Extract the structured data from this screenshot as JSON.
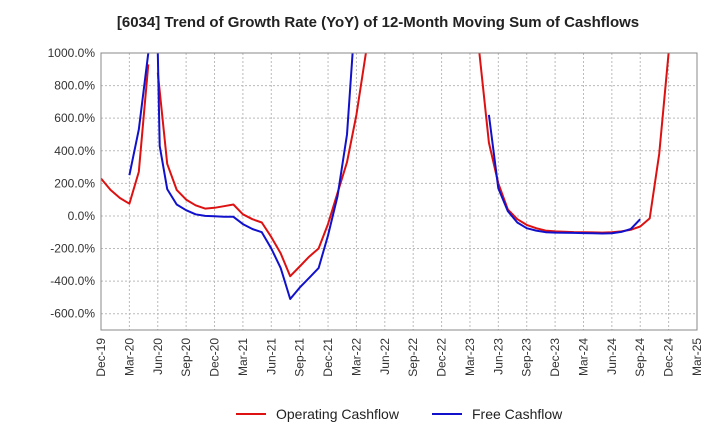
{
  "chart_data": {
    "type": "line",
    "title": "[6034]  Trend of Growth Rate (YoY) of 12-Month Moving Sum of Cashflows",
    "xlabel": "",
    "ylabel": "",
    "ylim": [
      -700,
      1000
    ],
    "y_ticks": [
      -600,
      -400,
      -200,
      0,
      200,
      400,
      600,
      800,
      1000
    ],
    "y_tick_labels": [
      "-600.0%",
      "-400.0%",
      "-200.0%",
      "0.0%",
      "200.0%",
      "400.0%",
      "600.0%",
      "800.0%",
      "1000.0%"
    ],
    "x_tick_labels": [
      "Dec-19",
      "Mar-20",
      "Jun-20",
      "Sep-20",
      "Dec-20",
      "Mar-21",
      "Jun-21",
      "Sep-21",
      "Dec-21",
      "Mar-22",
      "Jun-22",
      "Sep-22",
      "Dec-22",
      "Mar-23",
      "Jun-23",
      "Sep-23",
      "Dec-23",
      "Mar-24",
      "Jun-24",
      "Sep-24",
      "Dec-24",
      "Mar-25"
    ],
    "grid": true,
    "legend_position": "bottom",
    "series": [
      {
        "name": "Operating Cashflow",
        "color": "#dd1111",
        "points": [
          [
            0,
            230
          ],
          [
            1,
            160
          ],
          [
            2,
            110
          ],
          [
            3,
            75
          ],
          [
            4,
            270
          ],
          [
            5,
            930
          ],
          [
            null,
            null
          ],
          [
            6,
            880
          ],
          [
            7,
            320
          ],
          [
            8,
            160
          ],
          [
            9,
            100
          ],
          [
            10,
            65
          ],
          [
            11,
            45
          ],
          [
            12,
            50
          ],
          [
            13,
            60
          ],
          [
            14,
            70
          ],
          [
            15,
            10
          ],
          [
            16,
            -20
          ],
          [
            17,
            -40
          ],
          [
            18,
            -130
          ],
          [
            19,
            -230
          ],
          [
            20,
            -370
          ],
          [
            21,
            -310
          ],
          [
            22,
            -250
          ],
          [
            23,
            -200
          ],
          [
            24,
            -50
          ],
          [
            25,
            140
          ],
          [
            26,
            330
          ],
          [
            27,
            620
          ],
          [
            28,
            1000
          ],
          [
            null,
            null
          ],
          [
            40,
            1000
          ],
          [
            41,
            450
          ],
          [
            42,
            200
          ],
          [
            43,
            40
          ],
          [
            44,
            -20
          ],
          [
            45,
            -55
          ],
          [
            46,
            -75
          ],
          [
            47,
            -90
          ],
          [
            48,
            -95
          ],
          [
            49,
            -97
          ],
          [
            50,
            -99
          ],
          [
            51,
            -100
          ],
          [
            52,
            -101
          ],
          [
            53,
            -102
          ],
          [
            54,
            -100
          ],
          [
            55,
            -95
          ],
          [
            56,
            -85
          ],
          [
            57,
            -65
          ],
          [
            58,
            -15
          ],
          [
            59,
            380
          ],
          [
            60,
            1000
          ]
        ]
      },
      {
        "name": "Free Cashflow",
        "color": "#1111cc",
        "points": [
          [
            3,
            250
          ],
          [
            4,
            530
          ],
          [
            5,
            1000
          ],
          [
            null,
            null
          ],
          [
            6,
            1000
          ],
          [
            6.2,
            430
          ],
          [
            7,
            165
          ],
          [
            8,
            70
          ],
          [
            9,
            35
          ],
          [
            10,
            10
          ],
          [
            11,
            0
          ],
          [
            12,
            -2
          ],
          [
            13,
            -5
          ],
          [
            14,
            -5
          ],
          [
            15,
            -50
          ],
          [
            16,
            -80
          ],
          [
            17,
            -100
          ],
          [
            18,
            -200
          ],
          [
            19,
            -320
          ],
          [
            20,
            -510
          ],
          [
            21,
            -440
          ],
          [
            22,
            -380
          ],
          [
            23,
            -320
          ],
          [
            24,
            -120
          ],
          [
            25,
            120
          ],
          [
            26,
            500
          ],
          [
            26.6,
            1000
          ],
          [
            null,
            null
          ],
          [
            41,
            620
          ],
          [
            42,
            170
          ],
          [
            43,
            30
          ],
          [
            44,
            -40
          ],
          [
            45,
            -75
          ],
          [
            46,
            -90
          ],
          [
            47,
            -100
          ],
          [
            48,
            -102
          ],
          [
            49,
            -103
          ],
          [
            50,
            -104
          ],
          [
            51,
            -105
          ],
          [
            52,
            -106
          ],
          [
            53,
            -108
          ],
          [
            54,
            -106
          ],
          [
            55,
            -98
          ],
          [
            56,
            -80
          ],
          [
            57,
            -20
          ]
        ]
      }
    ]
  }
}
